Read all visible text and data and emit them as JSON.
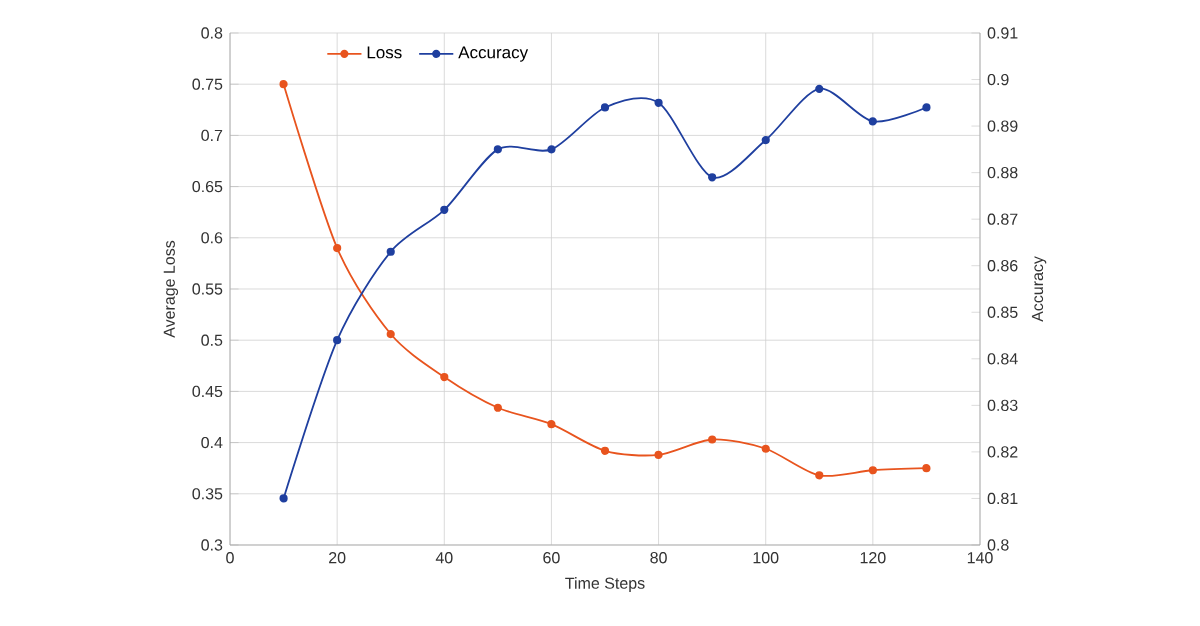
{
  "chart_data": {
    "type": "line",
    "xlabel": "Time Steps",
    "ylabel": "Average Loss",
    "y2label": "Accuracy",
    "x": [
      10,
      20,
      30,
      40,
      50,
      60,
      70,
      80,
      90,
      100,
      110,
      120,
      130
    ],
    "series": [
      {
        "name": "Loss",
        "color": "#e8541e",
        "values": [
          0.75,
          0.59,
          0.506,
          0.464,
          0.434,
          0.418,
          0.392,
          0.388,
          0.403,
          0.394,
          0.368,
          0.373,
          0.375
        ]
      },
      {
        "name": "Accuracy",
        "color": "#1f3f9f",
        "axis": "y2",
        "values": [
          0.81,
          0.844,
          0.863,
          0.872,
          0.885,
          0.885,
          0.894,
          0.895,
          0.879,
          0.887,
          0.898,
          0.891,
          0.894
        ]
      }
    ],
    "xlim": [
      0,
      140
    ],
    "xticks": [
      0,
      20,
      40,
      60,
      80,
      100,
      120,
      140
    ],
    "ylim": [
      0.3,
      0.8
    ],
    "yticks": [
      0.3,
      0.35,
      0.4,
      0.45,
      0.5,
      0.55,
      0.6,
      0.65,
      0.7,
      0.75,
      0.8
    ],
    "y2lim": [
      0.8,
      0.91
    ],
    "y2ticks": [
      0.8,
      0.81,
      0.82,
      0.83,
      0.84,
      0.85,
      0.86,
      0.87,
      0.88,
      0.89,
      0.9,
      0.91
    ],
    "grid": true,
    "legend": "top left",
    "marker": "circle",
    "line_style": "solid"
  }
}
